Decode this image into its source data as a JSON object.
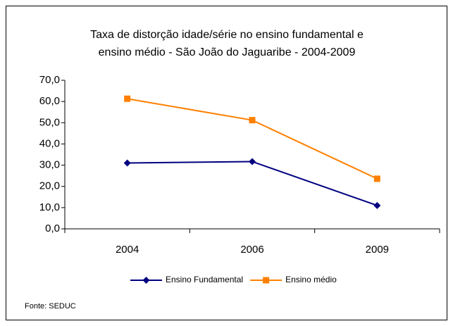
{
  "chart_data": {
    "type": "line",
    "title": [
      "Taxa de distorção idade/série no ensino fundamental e",
      "ensino médio - São João do Jaguaribe -  2004-2009"
    ],
    "categories": [
      "2004",
      "2006",
      "2009"
    ],
    "series": [
      {
        "name": "Ensino Fundamental",
        "color": "#000080",
        "marker": "diamond",
        "values": [
          31.0,
          31.7,
          11.0
        ]
      },
      {
        "name": "Ensino médio",
        "color": "#FF8000",
        "marker": "square",
        "values": [
          61.3,
          51.2,
          23.6
        ]
      }
    ],
    "ylim": [
      0,
      70
    ],
    "yticks": [
      {
        "value": 0,
        "label": "0,0"
      },
      {
        "value": 10,
        "label": "10,0"
      },
      {
        "value": 20,
        "label": "20,0"
      },
      {
        "value": 30,
        "label": "30,0"
      },
      {
        "value": 40,
        "label": "40,0"
      },
      {
        "value": 50,
        "label": "50,0"
      },
      {
        "value": 60,
        "label": "60,0"
      },
      {
        "value": 70,
        "label": "70,0"
      }
    ],
    "legend": "bottom",
    "source": "Fonte: SEDUC"
  }
}
